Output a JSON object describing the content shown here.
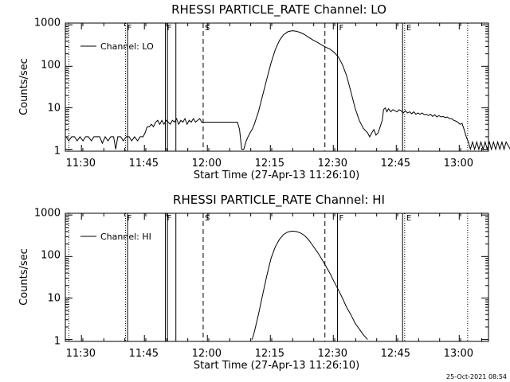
{
  "footer": {
    "timestamp": "25-Oct-2021 08:54"
  },
  "chart_data": [
    {
      "type": "line",
      "title": "RHESSI PARTICLE_RATE Channel: LO",
      "xlabel": "Start Time (27-Apr-13 11:26:10)",
      "ylabel": "Counts/sec",
      "y_scale": "log",
      "xlim_minutes_after_11_26_10": [
        0,
        100.8
      ],
      "ylim": [
        0.9,
        1100
      ],
      "x_ticks": [
        "11:30",
        "11:45",
        "12:00",
        "12:15",
        "12:30",
        "12:45",
        "13:00"
      ],
      "y_ticks": [
        "1",
        "10",
        "100",
        "1000"
      ],
      "legend": {
        "label": "Channel: LO",
        "placement": "top-left"
      },
      "markers": [
        {
          "label": "",
          "time": "11:27:00",
          "style": "dotted"
        },
        {
          "label": "F",
          "time": "11:40:30",
          "style": "dotted"
        },
        {
          "label": "",
          "time": "11:41:00",
          "style": "solid"
        },
        {
          "label": "F",
          "time": "11:50:00",
          "style": "solid"
        },
        {
          "label": "",
          "time": "11:50:30",
          "style": "solid"
        },
        {
          "label": "",
          "time": "11:52:30",
          "style": "solid"
        },
        {
          "label": "S",
          "time": "11:59:00",
          "style": "dashed"
        },
        {
          "label": "",
          "time": "12:28:00",
          "style": "dashed"
        },
        {
          "label": "F",
          "time": "12:31:00",
          "style": "solid"
        },
        {
          "label": "",
          "time": "12:46:30",
          "style": "solid"
        },
        {
          "label": "E",
          "time": "12:47:00",
          "style": "dotted"
        },
        {
          "label": "",
          "time": "13:02:00",
          "style": "dotted"
        }
      ],
      "series": [
        {
          "name": "Channel: LO",
          "points": [
            [
              0.2,
              2
            ],
            [
              0.8,
              1.6
            ],
            [
              1.5,
              2
            ],
            [
              2.2,
              2
            ],
            [
              2.8,
              1.6
            ],
            [
              3.5,
              2
            ],
            [
              4.2,
              1.6
            ],
            [
              4.8,
              2
            ],
            [
              5.5,
              2
            ],
            [
              6.2,
              1.6
            ],
            [
              6.8,
              2
            ],
            [
              7.5,
              2
            ],
            [
              8.2,
              2
            ],
            [
              8.8,
              1.4
            ],
            [
              9.5,
              2
            ],
            [
              10.2,
              1.6
            ],
            [
              10.8,
              2
            ],
            [
              11.5,
              2
            ],
            [
              12,
              1
            ],
            [
              12.5,
              2
            ],
            [
              13.2,
              2
            ],
            [
              13.8,
              1.6
            ],
            [
              14.5,
              2
            ],
            [
              15.2,
              2
            ],
            [
              15.8,
              1.6
            ],
            [
              16.5,
              2
            ],
            [
              17.2,
              1.6
            ],
            [
              17.8,
              2
            ],
            [
              18.5,
              2
            ],
            [
              19,
              2.5
            ],
            [
              19.5,
              3.5
            ],
            [
              20,
              3.5
            ],
            [
              20.5,
              4
            ],
            [
              21,
              3.5
            ],
            [
              21.5,
              4.5
            ],
            [
              22,
              5
            ],
            [
              22.5,
              4
            ],
            [
              23,
              5
            ],
            [
              23.5,
              4
            ],
            [
              24,
              5
            ],
            [
              24.5,
              4.5
            ],
            [
              25,
              4
            ],
            [
              25.5,
              5
            ],
            [
              26,
              4.5
            ],
            [
              26.5,
              5.5
            ],
            [
              27,
              4
            ],
            [
              27.5,
              5
            ],
            [
              28,
              4.5
            ],
            [
              28.5,
              5.5
            ],
            [
              29,
              4
            ],
            [
              29.5,
              5
            ],
            [
              30,
              4.5
            ],
            [
              30.5,
              5.5
            ],
            [
              31,
              4.5
            ],
            [
              31.5,
              5
            ],
            [
              32,
              5.5
            ],
            [
              32.5,
              4.5
            ],
            [
              33,
              4.5
            ],
            [
              34,
              4.5
            ],
            [
              35,
              4.5
            ],
            [
              36,
              4.5
            ],
            [
              37,
              4.5
            ],
            [
              38,
              4.5
            ],
            [
              39,
              4.5
            ],
            [
              40,
              4.5
            ],
            [
              41,
              4.5
            ],
            [
              41.5,
              3
            ],
            [
              42,
              1
            ],
            [
              42.5,
              1
            ],
            [
              43,
              1.5
            ],
            [
              43.5,
              2
            ],
            [
              44,
              2.5
            ],
            [
              44.5,
              3
            ],
            [
              45,
              4
            ],
            [
              46,
              8
            ],
            [
              47,
              20
            ],
            [
              48,
              50
            ],
            [
              49,
              120
            ],
            [
              50,
              250
            ],
            [
              51,
              420
            ],
            [
              52,
              580
            ],
            [
              53,
              680
            ],
            [
              54,
              720
            ],
            [
              55,
              700
            ],
            [
              56,
              650
            ],
            [
              57,
              580
            ],
            [
              58,
              500
            ],
            [
              59,
              430
            ],
            [
              60,
              380
            ],
            [
              61,
              330
            ],
            [
              62,
              290
            ],
            [
              63,
              260
            ],
            [
              64,
              220
            ],
            [
              65,
              170
            ],
            [
              66,
              110
            ],
            [
              67,
              60
            ],
            [
              68,
              25
            ],
            [
              69,
              10
            ],
            [
              70,
              5
            ],
            [
              71,
              3.2
            ],
            [
              72,
              2.5
            ],
            [
              72.5,
              2
            ],
            [
              73,
              2.5
            ],
            [
              73.5,
              3
            ],
            [
              74,
              2.2
            ],
            [
              74.5,
              2.5
            ],
            [
              75,
              3.5
            ],
            [
              75.5,
              5
            ],
            [
              75.8,
              9
            ],
            [
              76.2,
              10
            ],
            [
              76.6,
              8
            ],
            [
              77,
              9.5
            ],
            [
              77.5,
              8
            ],
            [
              78,
              9
            ],
            [
              78.5,
              8.5
            ],
            [
              79,
              8
            ],
            [
              79.5,
              9
            ],
            [
              80,
              8.5
            ],
            [
              80.5,
              7.5
            ],
            [
              81,
              8.5
            ],
            [
              81.5,
              7.5
            ],
            [
              82,
              8
            ],
            [
              82.5,
              7.2
            ],
            [
              83,
              8
            ],
            [
              83.5,
              7
            ],
            [
              84,
              7.5
            ],
            [
              84.5,
              7
            ],
            [
              85,
              7.5
            ],
            [
              85.5,
              6.8
            ],
            [
              86,
              7
            ],
            [
              86.5,
              6.5
            ],
            [
              87,
              7
            ],
            [
              87.5,
              6.2
            ],
            [
              88,
              6.8
            ],
            [
              88.5,
              6
            ],
            [
              89,
              6.5
            ],
            [
              89.5,
              6
            ],
            [
              90,
              6.2
            ],
            [
              90.5,
              5.8
            ],
            [
              91,
              6
            ],
            [
              91.5,
              5.5
            ],
            [
              92,
              5.5
            ],
            [
              92.5,
              5
            ],
            [
              93,
              4.8
            ],
            [
              93.5,
              4.5
            ],
            [
              94,
              4
            ],
            [
              94.5,
              4.2
            ],
            [
              95,
              3
            ],
            [
              95.5,
              2
            ],
            [
              96,
              1.5
            ],
            [
              96.5,
              1
            ],
            [
              97,
              1.5
            ],
            [
              97.5,
              1
            ],
            [
              98,
              1.5
            ],
            [
              98.5,
              1
            ],
            [
              99,
              1.5
            ],
            [
              99.5,
              1
            ],
            [
              100,
              1.5
            ],
            [
              100.5,
              1
            ],
            [
              101,
              1.5
            ],
            [
              101.5,
              1
            ],
            [
              102,
              1.5
            ],
            [
              102.5,
              1
            ],
            [
              103,
              1.5
            ],
            [
              103.5,
              1
            ],
            [
              104,
              1.5
            ],
            [
              104.5,
              1
            ],
            [
              105,
              1.5
            ],
            [
              106,
              1
            ],
            [
              107,
              1.5
            ],
            [
              108,
              2
            ],
            [
              109,
              2
            ]
          ]
        }
      ]
    },
    {
      "type": "line",
      "title": "RHESSI PARTICLE_RATE Channel: HI",
      "xlabel": "Start Time (27-Apr-13 11:26:10)",
      "ylabel": "Counts/sec",
      "y_scale": "log",
      "xlim_minutes_after_11_26_10": [
        0,
        100.8
      ],
      "ylim": [
        0.9,
        1100
      ],
      "x_ticks": [
        "11:30",
        "11:45",
        "12:00",
        "12:15",
        "12:30",
        "12:45",
        "13:00"
      ],
      "y_ticks": [
        "1",
        "10",
        "100",
        "1000"
      ],
      "legend": {
        "label": "Channel: HI",
        "placement": "top-left"
      },
      "markers": [
        {
          "label": "",
          "time": "11:27:00",
          "style": "dotted"
        },
        {
          "label": "F",
          "time": "11:40:30",
          "style": "dotted"
        },
        {
          "label": "",
          "time": "11:41:00",
          "style": "solid"
        },
        {
          "label": "F",
          "time": "11:50:00",
          "style": "solid"
        },
        {
          "label": "",
          "time": "11:50:30",
          "style": "solid"
        },
        {
          "label": "",
          "time": "11:52:30",
          "style": "solid"
        },
        {
          "label": "S",
          "time": "11:59:00",
          "style": "dashed"
        },
        {
          "label": "",
          "time": "12:28:00",
          "style": "dashed"
        },
        {
          "label": "F",
          "time": "12:31:00",
          "style": "solid"
        },
        {
          "label": "",
          "time": "12:46:30",
          "style": "solid"
        },
        {
          "label": "E",
          "time": "12:47:00",
          "style": "dotted"
        },
        {
          "label": "",
          "time": "13:02:00",
          "style": "dotted"
        }
      ],
      "series": [
        {
          "name": "Channel: HI",
          "points": [
            [
              44.5,
              1
            ],
            [
              45,
              1.5
            ],
            [
              46,
              4
            ],
            [
              47,
              12
            ],
            [
              48,
              35
            ],
            [
              49,
              90
            ],
            [
              50,
              170
            ],
            [
              51,
              260
            ],
            [
              52,
              340
            ],
            [
              53,
              390
            ],
            [
              54,
              410
            ],
            [
              55,
              400
            ],
            [
              56,
              370
            ],
            [
              57,
              320
            ],
            [
              58,
              250
            ],
            [
              59,
              180
            ],
            [
              60,
              130
            ],
            [
              61,
              90
            ],
            [
              62,
              60
            ],
            [
              63,
              40
            ],
            [
              64,
              25
            ],
            [
              65,
              16
            ],
            [
              66,
              10
            ],
            [
              67,
              6
            ],
            [
              68,
              4
            ],
            [
              69,
              2.5
            ],
            [
              70,
              1.8
            ],
            [
              71,
              1.3
            ],
            [
              72,
              1
            ]
          ]
        }
      ]
    }
  ]
}
